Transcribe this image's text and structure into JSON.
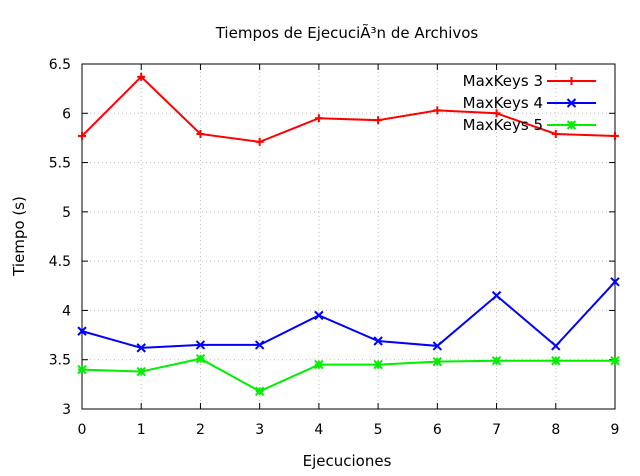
{
  "chart_data": {
    "type": "line",
    "title": "Tiempos de EjecuciÃ³n de Archivos",
    "xlabel": "Ejecuciones",
    "ylabel": "Tiempo (s)",
    "xlim": [
      0,
      9
    ],
    "ylim": [
      3,
      6.5
    ],
    "x": [
      0,
      1,
      2,
      3,
      4,
      5,
      6,
      7,
      8,
      9
    ],
    "x_ticks": [
      "0",
      "1",
      "2",
      "3",
      "4",
      "5",
      "6",
      "7",
      "8",
      "9"
    ],
    "y_ticks": [
      "3",
      "3.5",
      "4",
      "4.5",
      "5",
      "5.5",
      "6",
      "6.5"
    ],
    "grid": true,
    "legend_position": "top-right",
    "series": [
      {
        "name": "MaxKeys 3",
        "color": "#ff0000",
        "marker": "plus",
        "values": [
          5.77,
          6.37,
          5.79,
          5.71,
          5.95,
          5.93,
          6.03,
          6.0,
          5.79,
          5.77
        ]
      },
      {
        "name": "MaxKeys 4",
        "color": "#0000ff",
        "marker": "cross",
        "values": [
          3.79,
          3.62,
          3.65,
          3.65,
          3.95,
          3.69,
          3.64,
          4.15,
          3.64,
          4.29
        ]
      },
      {
        "name": "MaxKeys 5",
        "color": "#00ee00",
        "marker": "star",
        "values": [
          3.4,
          3.38,
          3.51,
          3.18,
          3.45,
          3.45,
          3.48,
          3.49,
          3.49,
          3.49
        ]
      }
    ]
  }
}
